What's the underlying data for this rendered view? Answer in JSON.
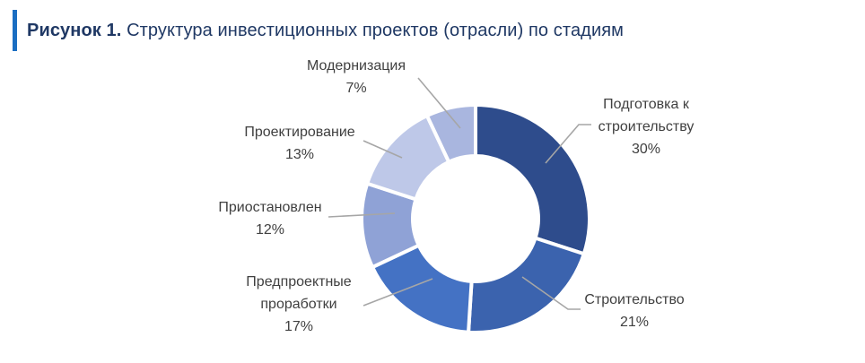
{
  "figure": {
    "prefix": "Рисунок 1.",
    "title": " Структура инвестиционных проектов (отрасли) по стадиям"
  },
  "colors": {
    "accent_bar": "#1b6ec2",
    "title": "#1f3864",
    "label_text": "#404040",
    "leader_line": "#a6a6a6",
    "slice_border": "#ffffff",
    "background": "#ffffff"
  },
  "chart_data": {
    "type": "pie",
    "subtype": "donut",
    "title": "Структура инвестиционных проектов (отрасли) по стадиям",
    "legend_position": "none",
    "labels_position": "outside-callouts",
    "start_angle_deg": 0,
    "direction": "clockwise",
    "donut_hole_ratio": 0.55,
    "units": "%",
    "slices": [
      {
        "name": "Подготовка к строительству",
        "value": 30,
        "pct_label": "30%",
        "color": "#2e4c8c",
        "label_lines": [
          "Подготовка к",
          "строительству",
          "30%"
        ]
      },
      {
        "name": "Строительство",
        "value": 21,
        "pct_label": "21%",
        "color": "#3b63ae",
        "label_lines": [
          "Строительство",
          "21%"
        ]
      },
      {
        "name": "Предпроектные проработки",
        "value": 17,
        "pct_label": "17%",
        "color": "#4472c4",
        "label_lines": [
          "Предпроектные",
          "проработки",
          "17%"
        ]
      },
      {
        "name": "Приостановлен",
        "value": 12,
        "pct_label": "12%",
        "color": "#8fa2d6",
        "label_lines": [
          "Приостановлен",
          "12%"
        ]
      },
      {
        "name": "Проектирование",
        "value": 13,
        "pct_label": "13%",
        "color": "#bec8e8",
        "label_lines": [
          "Проектирование",
          "13%"
        ]
      },
      {
        "name": "Модернизация",
        "value": 7,
        "pct_label": "7%",
        "color": "#a9b6df",
        "label_lines": [
          "Модернизация",
          "7%"
        ]
      }
    ]
  }
}
